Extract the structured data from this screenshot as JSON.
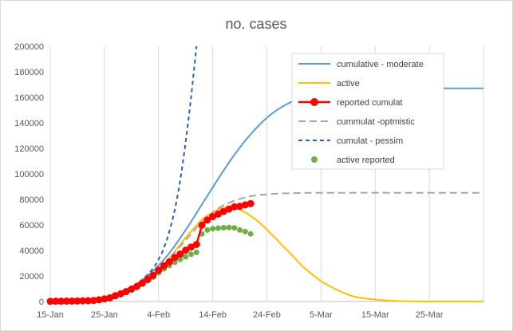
{
  "chart_data": {
    "type": "line",
    "title": "no. cases",
    "xlabel": "",
    "ylabel": "",
    "ylim": [
      0,
      200000
    ],
    "yticks": [
      0,
      20000,
      40000,
      60000,
      80000,
      100000,
      120000,
      140000,
      160000,
      180000,
      200000
    ],
    "xlim": [
      "2020-01-15",
      "2020-04-04"
    ],
    "xticks": [
      "15-Jan",
      "25-Jan",
      "4-Feb",
      "14-Feb",
      "24-Feb",
      "5-Mar",
      "15-Mar",
      "25-Mar"
    ],
    "grid": "vertical",
    "legend_position": "top-right",
    "series": [
      {
        "name": "cumulative - moderate",
        "color": "#5b9bd5",
        "style": "solid",
        "x": [
          "2020-01-15",
          "2020-01-20",
          "2020-01-25",
          "2020-01-28",
          "2020-01-31",
          "2020-02-03",
          "2020-02-06",
          "2020-02-09",
          "2020-02-12",
          "2020-02-15",
          "2020-02-18",
          "2020-02-21",
          "2020-02-24",
          "2020-02-27",
          "2020-03-01",
          "2020-03-05",
          "2020-03-10",
          "2020-03-15",
          "2020-03-20",
          "2020-03-30",
          "2020-04-04"
        ],
        "values": [
          0,
          500,
          3000,
          7000,
          14000,
          24000,
          38000,
          56000,
          76000,
          96000,
          115000,
          131000,
          144000,
          153000,
          159000,
          164000,
          166500,
          167000,
          167000,
          167000,
          167000
        ]
      },
      {
        "name": "active",
        "color": "#ffc000",
        "style": "solid",
        "x": [
          "2020-01-15",
          "2020-01-20",
          "2020-01-25",
          "2020-01-28",
          "2020-01-31",
          "2020-02-03",
          "2020-02-06",
          "2020-02-09",
          "2020-02-12",
          "2020-02-15",
          "2020-02-17",
          "2020-02-19",
          "2020-02-22",
          "2020-02-25",
          "2020-02-28",
          "2020-03-02",
          "2020-03-05",
          "2020-03-08",
          "2020-03-11",
          "2020-03-15",
          "2020-03-20",
          "2020-03-25",
          "2020-04-04"
        ],
        "values": [
          0,
          500,
          3000,
          7000,
          13000,
          22000,
          34000,
          50000,
          64000,
          72000,
          74000,
          72000,
          64000,
          52000,
          39000,
          26000,
          16000,
          9000,
          4000,
          1500,
          300,
          0,
          0
        ]
      },
      {
        "name": "reported cumulat",
        "color": "#ff0000",
        "style": "solid-marker",
        "x": [
          "2020-01-15",
          "2020-01-16",
          "2020-01-17",
          "2020-01-18",
          "2020-01-19",
          "2020-01-20",
          "2020-01-21",
          "2020-01-22",
          "2020-01-23",
          "2020-01-24",
          "2020-01-25",
          "2020-01-26",
          "2020-01-27",
          "2020-01-28",
          "2020-01-29",
          "2020-01-30",
          "2020-01-31",
          "2020-02-01",
          "2020-02-02",
          "2020-02-03",
          "2020-02-04",
          "2020-02-05",
          "2020-02-06",
          "2020-02-07",
          "2020-02-08",
          "2020-02-09",
          "2020-02-10",
          "2020-02-11",
          "2020-02-12",
          "2020-02-13",
          "2020-02-14",
          "2020-02-15",
          "2020-02-16",
          "2020-02-17",
          "2020-02-18",
          "2020-02-19",
          "2020-02-20",
          "2020-02-21"
        ],
        "values": [
          100,
          200,
          200,
          300,
          300,
          400,
          500,
          600,
          800,
          1300,
          2000,
          2800,
          4500,
          6000,
          7700,
          9700,
          11800,
          14500,
          17300,
          20400,
          24500,
          28000,
          31100,
          34500,
          37200,
          40200,
          42600,
          44700,
          59800,
          63800,
          66500,
          68500,
          70500,
          72400,
          74200,
          74600,
          75700,
          76700
        ]
      },
      {
        "name": "cummulat -optmistic",
        "color": "#a6a6a6",
        "style": "dashed",
        "x": [
          "2020-01-15",
          "2020-01-20",
          "2020-01-25",
          "2020-01-28",
          "2020-01-31",
          "2020-02-03",
          "2020-02-06",
          "2020-02-09",
          "2020-02-12",
          "2020-02-15",
          "2020-02-18",
          "2020-02-21",
          "2020-02-24",
          "2020-03-01",
          "2020-03-10",
          "2020-03-20",
          "2020-04-04"
        ],
        "values": [
          0,
          500,
          3000,
          7000,
          13000,
          22000,
          34000,
          48000,
          62000,
          73000,
          79000,
          82500,
          84000,
          85000,
          85200,
          85200,
          85200
        ]
      },
      {
        "name": "cumulat - pessim",
        "color": "#2e5fa8",
        "style": "dashed",
        "x": [
          "2020-01-15",
          "2020-01-20",
          "2020-01-25",
          "2020-01-28",
          "2020-01-30",
          "2020-02-01",
          "2020-02-03",
          "2020-02-04",
          "2020-02-05",
          "2020-02-06",
          "2020-02-07",
          "2020-02-08",
          "2020-02-09",
          "2020-02-10",
          "2020-02-11"
        ],
        "values": [
          0,
          500,
          3000,
          7000,
          11000,
          17000,
          26000,
          33000,
          42000,
          55000,
          72000,
          95000,
          125000,
          160000,
          200000
        ]
      },
      {
        "name": "active reported",
        "color": "#70ad47",
        "style": "marker",
        "x": [
          "2020-01-15",
          "2020-01-16",
          "2020-01-17",
          "2020-01-18",
          "2020-01-19",
          "2020-01-20",
          "2020-01-21",
          "2020-01-22",
          "2020-01-23",
          "2020-01-24",
          "2020-01-25",
          "2020-01-26",
          "2020-01-27",
          "2020-01-28",
          "2020-01-29",
          "2020-01-30",
          "2020-01-31",
          "2020-02-01",
          "2020-02-02",
          "2020-02-03",
          "2020-02-04",
          "2020-02-05",
          "2020-02-06",
          "2020-02-07",
          "2020-02-08",
          "2020-02-09",
          "2020-02-10",
          "2020-02-11",
          "2020-02-12",
          "2020-02-13",
          "2020-02-14",
          "2020-02-15",
          "2020-02-16",
          "2020-02-17",
          "2020-02-18",
          "2020-02-19",
          "2020-02-20",
          "2020-02-21"
        ],
        "values": [
          100,
          200,
          200,
          300,
          300,
          400,
          500,
          600,
          800,
          1200,
          1900,
          2700,
          4300,
          5700,
          7300,
          9200,
          11100,
          13600,
          16200,
          19100,
          22600,
          25600,
          28200,
          30800,
          33000,
          35000,
          37000,
          38500,
          53000,
          56000,
          57000,
          57500,
          57800,
          58000,
          57700,
          56000,
          54800,
          53000
        ]
      }
    ]
  }
}
